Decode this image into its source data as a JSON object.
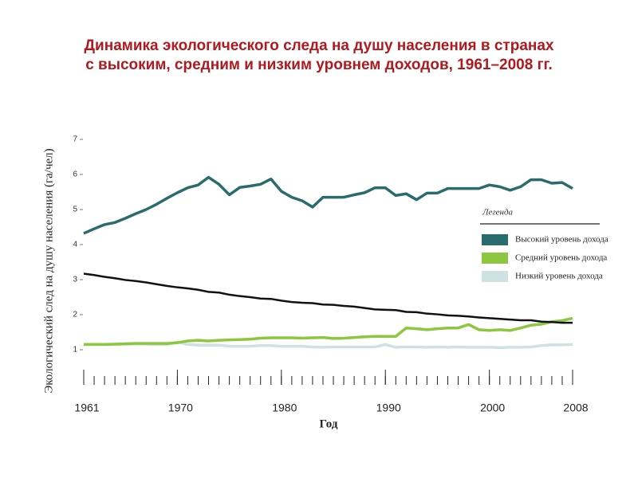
{
  "chart_data": {
    "type": "line",
    "title": [
      "Динамика экологического следа на душу населения в странах",
      "с высоким, средним и низким уровнем доходов, 1961–2008 гг."
    ],
    "x_label": "Год",
    "y_label": "Экологический след на душу населения (га/чел)",
    "legend_title": "Легенда",
    "x": [
      1961,
      1962,
      1963,
      1964,
      1965,
      1966,
      1967,
      1968,
      1969,
      1970,
      1971,
      1972,
      1973,
      1974,
      1975,
      1976,
      1977,
      1978,
      1979,
      1980,
      1981,
      1982,
      1983,
      1984,
      1985,
      1986,
      1987,
      1988,
      1989,
      1990,
      1991,
      1992,
      1993,
      1994,
      1995,
      1996,
      1997,
      1998,
      1999,
      2000,
      2001,
      2002,
      2003,
      2004,
      2005,
      2006,
      2007,
      2008
    ],
    "xlim": [
      1961,
      2008
    ],
    "xticks": [
      1961,
      1970,
      1980,
      1990,
      2000,
      2008
    ],
    "ylim": [
      0,
      7
    ],
    "yticks": [
      1,
      2,
      3,
      4,
      5,
      6,
      7
    ],
    "series": [
      {
        "name": "Высокий уровень дохода",
        "color": "#2a6b6e",
        "values": [
          4.32,
          4.45,
          4.57,
          4.63,
          4.75,
          4.88,
          5.0,
          5.15,
          5.32,
          5.48,
          5.62,
          5.7,
          5.92,
          5.72,
          5.42,
          5.63,
          5.67,
          5.72,
          5.87,
          5.52,
          5.35,
          5.25,
          5.07,
          5.35,
          5.35,
          5.35,
          5.42,
          5.48,
          5.62,
          5.62,
          5.4,
          5.45,
          5.28,
          5.47,
          5.47,
          5.6,
          5.6,
          5.6,
          5.6,
          5.7,
          5.65,
          5.55,
          5.65,
          5.85,
          5.85,
          5.75,
          5.77,
          5.6
        ]
      },
      {
        "color": "#111111",
        "values": [
          3.17,
          3.13,
          3.08,
          3.04,
          2.99,
          2.96,
          2.92,
          2.87,
          2.82,
          2.78,
          2.75,
          2.71,
          2.65,
          2.63,
          2.57,
          2.53,
          2.5,
          2.46,
          2.45,
          2.4,
          2.36,
          2.34,
          2.33,
          2.29,
          2.28,
          2.25,
          2.23,
          2.19,
          2.15,
          2.14,
          2.13,
          2.08,
          2.07,
          2.03,
          2.01,
          1.98,
          1.97,
          1.95,
          1.92,
          1.9,
          1.88,
          1.86,
          1.84,
          1.84,
          1.8,
          1.79,
          1.77,
          1.77
        ]
      },
      {
        "name": "Средний уровень дохода",
        "color": "#8dc63f",
        "values": [
          1.15,
          1.15,
          1.15,
          1.16,
          1.17,
          1.18,
          1.18,
          1.18,
          1.18,
          1.2,
          1.25,
          1.27,
          1.25,
          1.27,
          1.28,
          1.29,
          1.3,
          1.33,
          1.34,
          1.34,
          1.34,
          1.33,
          1.34,
          1.35,
          1.32,
          1.33,
          1.35,
          1.37,
          1.38,
          1.38,
          1.38,
          1.62,
          1.6,
          1.57,
          1.6,
          1.62,
          1.62,
          1.72,
          1.57,
          1.55,
          1.57,
          1.55,
          1.62,
          1.7,
          1.73,
          1.8,
          1.83,
          1.9
        ]
      },
      {
        "name": "Низкий уровень дохода",
        "color": "#cfe2e2",
        "values": [
          1.15,
          1.15,
          1.15,
          1.15,
          1.16,
          1.16,
          1.16,
          1.15,
          1.15,
          1.22,
          1.15,
          1.13,
          1.13,
          1.13,
          1.1,
          1.1,
          1.1,
          1.12,
          1.12,
          1.1,
          1.1,
          1.1,
          1.08,
          1.07,
          1.08,
          1.08,
          1.08,
          1.08,
          1.08,
          1.15,
          1.07,
          1.08,
          1.08,
          1.07,
          1.08,
          1.07,
          1.08,
          1.07,
          1.07,
          1.07,
          1.06,
          1.07,
          1.07,
          1.08,
          1.12,
          1.14,
          1.14,
          1.15
        ]
      }
    ]
  }
}
